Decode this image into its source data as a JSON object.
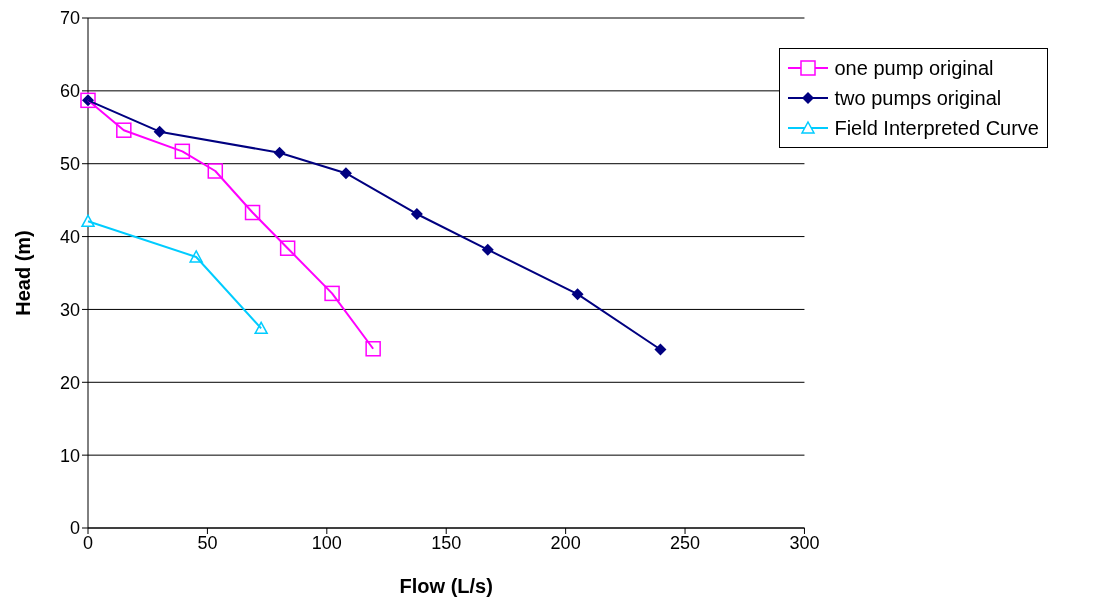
{
  "chart_data": {
    "type": "line",
    "xlabel": "Flow (L/s)",
    "ylabel": "Head (m)",
    "xlim": [
      0,
      300
    ],
    "xticks": [
      0,
      50,
      100,
      150,
      200,
      250,
      300
    ],
    "ylim": [
      0,
      70
    ],
    "yticks": [
      0,
      10,
      20,
      30,
      40,
      50,
      60,
      70
    ],
    "grid": "y",
    "legend": "top right",
    "line_style": "solid",
    "series": [
      {
        "name": "one pump original",
        "color": "#ff00ff",
        "marker": "square",
        "x": [
          0,
          15,
          39.5,
          53.3,
          68.9,
          83.6,
          102.2,
          119.4
        ],
        "values": [
          58.7,
          54.6,
          51.7,
          49.0,
          43.3,
          38.4,
          32.2,
          24.6
        ]
      },
      {
        "name": "two pumps original",
        "color": "#000080",
        "marker": "diamond",
        "x": [
          0,
          30,
          80.2,
          108,
          137.7,
          167.4,
          205,
          239.7
        ],
        "values": [
          58.7,
          54.4,
          51.5,
          48.7,
          43.1,
          38.2,
          32.1,
          24.5
        ]
      },
      {
        "name": "Field Interpreted Curve",
        "color": "#00ccff",
        "marker": "triangle",
        "x": [
          0,
          45.3,
          72.5
        ],
        "values": [
          42.1,
          37.2,
          27.4
        ]
      }
    ]
  }
}
